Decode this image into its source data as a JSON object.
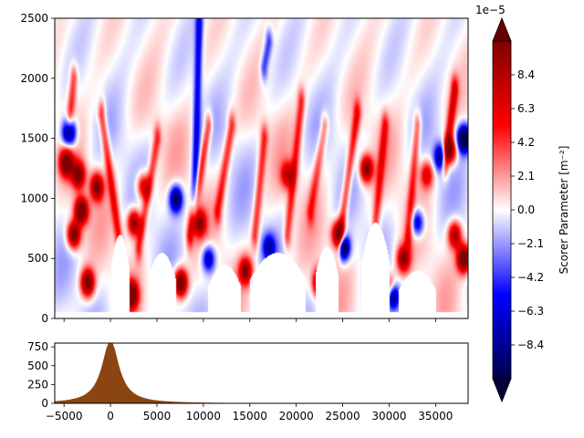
{
  "chart_data": [
    {
      "type": "heatmap",
      "xlim": [
        -6000,
        38500
      ],
      "ylim": [
        0,
        2500
      ],
      "x_ticks": [
        -5000,
        0,
        5000,
        10000,
        15000,
        20000,
        25000,
        30000,
        35000
      ],
      "y_ticks": [
        0,
        500,
        1000,
        1500,
        2000,
        2500
      ],
      "y_tick_labels": [
        "0",
        "500",
        "1000",
        "1500",
        "2000",
        "2500"
      ],
      "colormap": "seismic",
      "colormap_colors": [
        "#00004c",
        "#0000ff",
        "#ffffff",
        "#ff0000",
        "#800000"
      ],
      "features": {
        "blobs": [
          {
            "x": -4500,
            "y": 1550,
            "v": -1.0
          },
          {
            "x": -4800,
            "y": 1300,
            "v": 0.9
          },
          {
            "x": -3500,
            "y": 1200,
            "v": 0.8
          },
          {
            "x": -3200,
            "y": 900,
            "v": 1.0
          },
          {
            "x": -4000,
            "y": 700,
            "v": 0.9
          },
          {
            "x": -2500,
            "y": 300,
            "v": 0.9
          },
          {
            "x": -1500,
            "y": 1100,
            "v": 0.8
          },
          {
            "x": 2500,
            "y": 800,
            "v": 0.8
          },
          {
            "x": 3500,
            "y": 1100,
            "v": 0.6
          },
          {
            "x": 2200,
            "y": 200,
            "v": 1.0
          },
          {
            "x": 5500,
            "y": 200,
            "v": 1.0
          },
          {
            "x": 7500,
            "y": 300,
            "v": 1.0
          },
          {
            "x": 7000,
            "y": 1000,
            "v": -0.8
          },
          {
            "x": 9500,
            "y": 800,
            "v": 0.7
          },
          {
            "x": 10500,
            "y": 500,
            "v": -0.6
          },
          {
            "x": 14500,
            "y": 400,
            "v": 0.7
          },
          {
            "x": 17000,
            "y": 600,
            "v": -0.5
          },
          {
            "x": 19000,
            "y": 1200,
            "v": 0.5
          },
          {
            "x": 22500,
            "y": 300,
            "v": 1.0
          },
          {
            "x": 24500,
            "y": 700,
            "v": 0.9
          },
          {
            "x": 25000,
            "y": 600,
            "v": -1.0
          },
          {
            "x": 27500,
            "y": 1250,
            "v": 0.8
          },
          {
            "x": 30000,
            "y": 250,
            "v": 0.8
          },
          {
            "x": 30300,
            "y": 200,
            "v": -1.0
          },
          {
            "x": 31500,
            "y": 500,
            "v": 0.7
          },
          {
            "x": 33000,
            "y": 800,
            "v": -0.6
          },
          {
            "x": 34000,
            "y": 1200,
            "v": 0.5
          },
          {
            "x": 35500,
            "y": 1350,
            "v": -0.7
          },
          {
            "x": 36500,
            "y": 1400,
            "v": 0.8
          },
          {
            "x": 38000,
            "y": 1500,
            "v": -1.0
          },
          {
            "x": 38000,
            "y": 500,
            "v": 1.0
          },
          {
            "x": 37000,
            "y": 700,
            "v": 0.7
          }
        ],
        "streaks": [
          {
            "x0": -1000,
            "y0": 1700,
            "x1": 1000,
            "y1": 600,
            "v": 0.35
          },
          {
            "x0": 5000,
            "y0": 1500,
            "x1": 3000,
            "y1": 600,
            "v": 0.3
          },
          {
            "x0": 9500,
            "y0": 2450,
            "x1": 9000,
            "y1": 900,
            "v": -0.4
          },
          {
            "x0": 10500,
            "y0": 1600,
            "x1": 8500,
            "y1": 700,
            "v": 0.35
          },
          {
            "x0": 13000,
            "y0": 1600,
            "x1": 11500,
            "y1": 900,
            "v": 0.3
          },
          {
            "x0": 16500,
            "y0": 1500,
            "x1": 15500,
            "y1": 700,
            "v": 0.3
          },
          {
            "x0": 17000,
            "y0": 2300,
            "x1": 16500,
            "y1": 2100,
            "v": -0.3
          },
          {
            "x0": 20500,
            "y0": 1800,
            "x1": 19000,
            "y1": 700,
            "v": 0.3
          },
          {
            "x0": 23000,
            "y0": 1600,
            "x1": 21500,
            "y1": 900,
            "v": 0.25
          },
          {
            "x0": 26500,
            "y0": 1700,
            "x1": 24500,
            "y1": 600,
            "v": 0.35
          },
          {
            "x0": 29500,
            "y0": 1600,
            "x1": 28500,
            "y1": 800,
            "v": 0.3
          },
          {
            "x0": 33000,
            "y0": 1600,
            "x1": 32000,
            "y1": 700,
            "v": 0.3
          },
          {
            "x0": 37000,
            "y0": 1900,
            "x1": 36000,
            "y1": 1300,
            "v": 0.4
          },
          {
            "x0": -4000,
            "y0": 2000,
            "x1": -4500,
            "y1": 1600,
            "v": 0.3
          }
        ],
        "blank_regions_below_y": [
          {
            "x0": 0,
            "x1": 2000,
            "top": 700
          },
          {
            "x0": 4000,
            "x1": 7000,
            "top": 550
          },
          {
            "x0": 10500,
            "x1": 14000,
            "top": 450
          },
          {
            "x0": 15000,
            "x1": 21000,
            "top": 550
          },
          {
            "x0": 22000,
            "x1": 24500,
            "top": 600
          },
          {
            "x0": 27000,
            "x1": 30000,
            "top": 800
          },
          {
            "x0": 31000,
            "x1": 35000,
            "top": 400
          }
        ]
      }
    },
    {
      "type": "area",
      "fill_color": "#8b4513",
      "xlim": [
        -6000,
        38500
      ],
      "ylim": [
        0,
        800
      ],
      "peak_x": 0,
      "peak_y": 850,
      "x_ticks": [
        -5000,
        0,
        5000,
        10000,
        15000,
        20000,
        25000,
        30000,
        35000
      ],
      "x_tick_labels": [
        "−5000",
        "0",
        "5000",
        "10000",
        "15000",
        "20000",
        "25000",
        "30000",
        "35000"
      ],
      "y_ticks": [
        0,
        250,
        500,
        750
      ],
      "y_tick_labels": [
        "0",
        "250",
        "500",
        "750"
      ]
    },
    {
      "type": "colorbar",
      "label": "Scorer Parameter [$m^{-2}$]",
      "label_display": "Scorer Parameter [m⁻²]",
      "offset_text": "1e−5",
      "vmin": -10.5,
      "vmax": 10.5,
      "extend": "both",
      "tick_values": [
        8.4,
        6.3,
        4.2,
        2.1,
        0.0,
        -2.1,
        -4.2,
        -6.3,
        -8.4
      ],
      "tick_labels": [
        "8.4",
        "6.3",
        "4.2",
        "2.1",
        "0.0",
        "−2.1",
        "−4.2",
        "−6.3",
        "−8.4"
      ]
    }
  ]
}
